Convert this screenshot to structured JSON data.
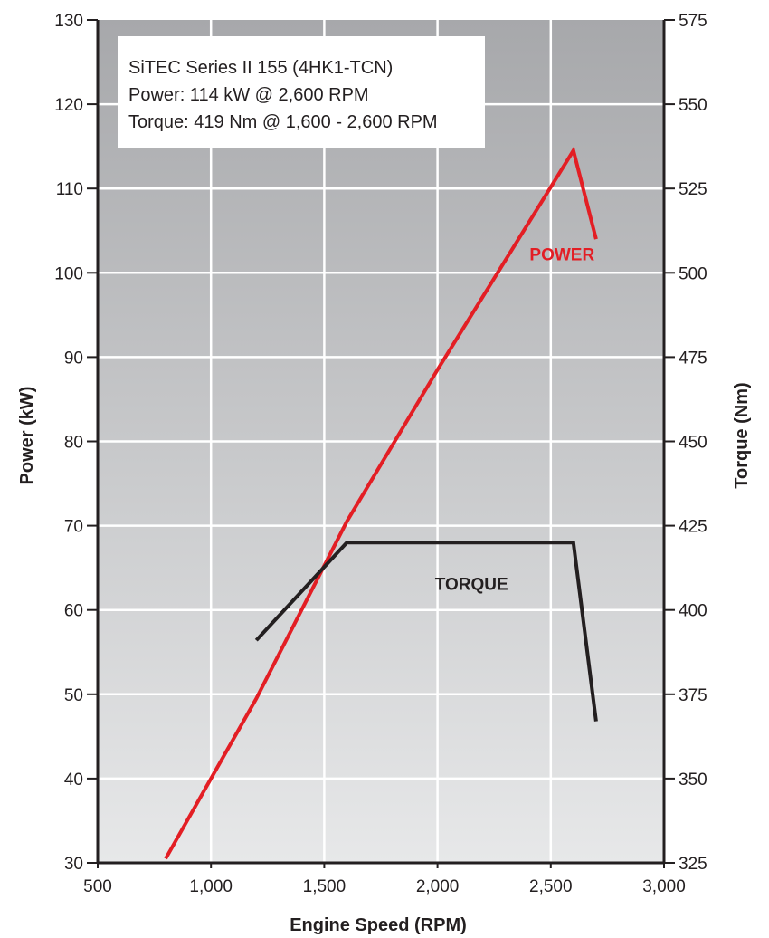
{
  "chart_data": {
    "type": "line",
    "info_box": [
      "SiTEC Series II 155 (4HK1-TCN)",
      "Power: 114 kW @ 2,600 RPM",
      "Torque: 419 Nm @ 1,600 - 2,600 RPM"
    ],
    "xlabel": "Engine Speed (RPM)",
    "ylabel_left": "Power (kW)",
    "ylabel_right": "Torque (Nm)",
    "xlim": [
      500,
      3000
    ],
    "ylim_left": [
      30,
      130
    ],
    "ylim_right": [
      325,
      575
    ],
    "x_ticks": [
      {
        "value": 500,
        "label": "500"
      },
      {
        "value": 1000,
        "label": "1,000"
      },
      {
        "value": 1500,
        "label": "1,500"
      },
      {
        "value": 2000,
        "label": "2,000"
      },
      {
        "value": 2500,
        "label": "2,500"
      },
      {
        "value": 3000,
        "label": "3,000"
      }
    ],
    "y_left_ticks": [
      30,
      40,
      50,
      60,
      70,
      80,
      90,
      100,
      110,
      120,
      130
    ],
    "y_right_ticks": [
      325,
      350,
      375,
      400,
      425,
      450,
      475,
      500,
      525,
      550,
      575
    ],
    "grid": true,
    "series": [
      {
        "name": "POWER",
        "axis": "left",
        "color": "#e31e24",
        "label_at": {
          "x": 2550,
          "y": 101.5
        },
        "points": [
          [
            800,
            30.5
          ],
          [
            1200,
            49.5
          ],
          [
            1600,
            70.5
          ],
          [
            2000,
            88.5
          ],
          [
            2600,
            114.5
          ],
          [
            2700,
            104
          ]
        ]
      },
      {
        "name": "TORQUE",
        "axis": "right",
        "color": "#231f20",
        "label_at": {
          "x": 2150,
          "y": 406
        },
        "points": [
          [
            1200,
            391
          ],
          [
            1600,
            420
          ],
          [
            2000,
            420
          ],
          [
            2600,
            420
          ],
          [
            2700,
            367
          ]
        ]
      }
    ]
  }
}
